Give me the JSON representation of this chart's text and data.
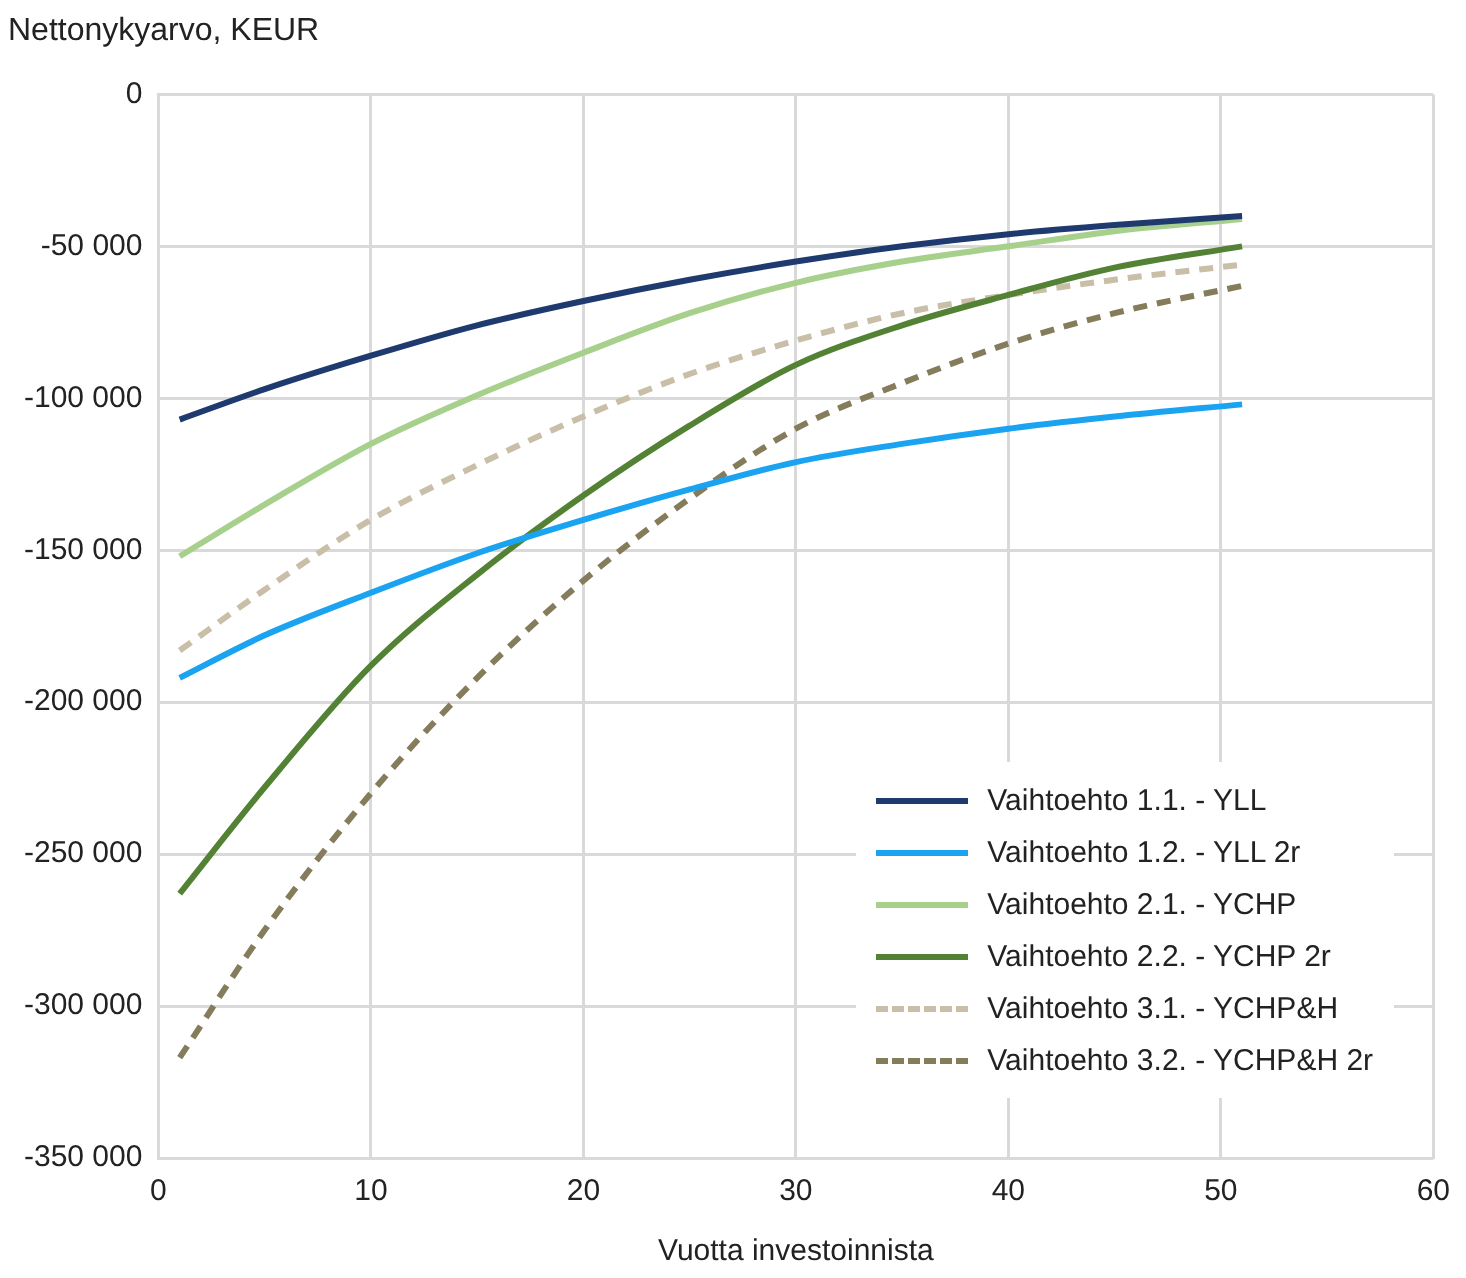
{
  "chart_data": {
    "type": "line",
    "ylabel": "Nettonykyarvo, KEUR",
    "xlabel": "Vuotta investoinnista",
    "x": [
      1,
      5,
      10,
      15,
      20,
      25,
      30,
      35,
      40,
      45,
      51
    ],
    "series": [
      {
        "name": "Vaihtoehto 1.1. - YLL",
        "color": "#1f3a6e",
        "values": [
          -107000,
          -97000,
          -86000,
          -76000,
          -68000,
          -61000,
          -55000,
          -50000,
          -46000,
          -43000,
          -40000
        ]
      },
      {
        "name": "Vaihtoehto 1.2. - YLL 2r",
        "color": "#1aa3f0",
        "values": [
          -192000,
          -178000,
          -164000,
          -151000,
          -140000,
          -130000,
          -121000,
          -115000,
          -110000,
          -106000,
          -102000
        ]
      },
      {
        "name": "Vaihtoehto 2.1. - YCHP",
        "color": "#a8d08d",
        "values": [
          -152000,
          -135000,
          -115000,
          -99000,
          -85000,
          -72000,
          -62000,
          -55000,
          -50000,
          -45000,
          -41000
        ]
      },
      {
        "name": "Vaihtoehto 2.2. - YCHP 2r",
        "color": "#548235",
        "values": [
          -263000,
          -228000,
          -188000,
          -158000,
          -132000,
          -109000,
          -89000,
          -76000,
          -66000,
          -57000,
          -50000
        ]
      },
      {
        "name": "Vaihtoehto 3.1. - YCHP&H",
        "color": "#c9bfa8",
        "line_style": "dashed",
        "values": [
          -183000,
          -163000,
          -140000,
          -122000,
          -106000,
          -92000,
          -81000,
          -72000,
          -66000,
          -61000,
          -56000
        ]
      },
      {
        "name": "Vaihtoehto 3.2. - YCHP&H 2r",
        "color": "#857c5c",
        "line_style": "dashed",
        "values": [
          -317000,
          -275000,
          -230000,
          -192000,
          -160000,
          -133000,
          -110000,
          -95000,
          -82000,
          -72000,
          -63000
        ]
      }
    ],
    "xlim": [
      0,
      60
    ],
    "xticks": [
      0,
      10,
      20,
      30,
      40,
      50,
      60
    ],
    "ylim": [
      -350000,
      0
    ],
    "yticks": [
      {
        "value": -350000,
        "label": "-350 000"
      },
      {
        "value": -300000,
        "label": "-300 000"
      },
      {
        "value": -250000,
        "label": "-250 000"
      },
      {
        "value": -200000,
        "label": "-200 000"
      },
      {
        "value": -150000,
        "label": "-150 000"
      },
      {
        "value": -100000,
        "label": "-100 000"
      },
      {
        "value": -50000,
        "label": "-50 000"
      },
      0
    ],
    "grid": true,
    "legend": "bottom right",
    "marker": "none",
    "line_style": "solid"
  }
}
